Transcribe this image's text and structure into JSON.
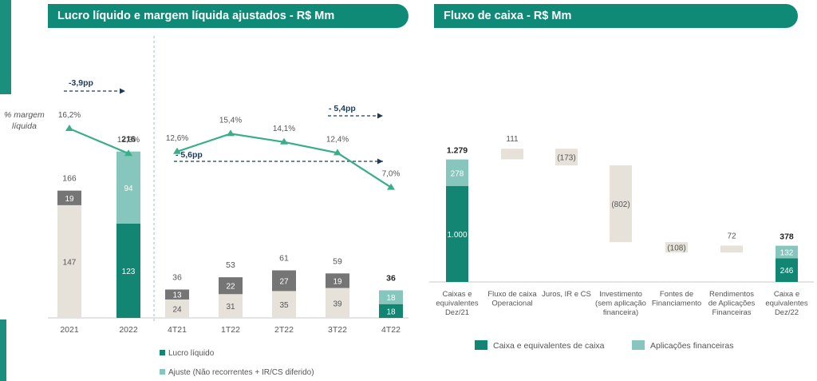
{
  "colors": {
    "header_bg": "#0e8a77",
    "dark_teal": "#138673",
    "light_teal": "#86c6bc",
    "gray": "#757575",
    "beige": "#e6e1d9",
    "line": "#3aae8a",
    "arrow": "#1f3b5c"
  },
  "left_panel": {
    "title": "Lucro líquido e margem líquida ajustados - R$ Mm",
    "margin_label_line1": "% margem",
    "margin_label_line2": "líquida",
    "legend": [
      {
        "label": "Lucro líquido",
        "color": "#138673"
      },
      {
        "label": "Ajuste (Não recorrentes + IR/CS diferido)",
        "color": "#86c6bc"
      }
    ]
  },
  "right_panel": {
    "title": "Fluxo de caixa - R$ Mm",
    "legend": [
      {
        "label": "Caixa e equivalentes de caixa",
        "color": "#138673"
      },
      {
        "label": "Aplicações financeiras",
        "color": "#86c6bc"
      }
    ]
  },
  "chart_data": [
    {
      "type": "bar",
      "subtype": "stacked",
      "title": "Lucro líquido e margem líquida ajustados - R$ Mm",
      "categories": [
        "2021",
        "2022",
        "4T21",
        "1T22",
        "2T22",
        "3T22",
        "4T22"
      ],
      "series": [
        {
          "name": "Lucro líquido",
          "values": [
            147,
            123,
            24,
            31,
            35,
            39,
            18
          ],
          "colors": [
            "#e6e1d9",
            "#138673",
            "#e6e1d9",
            "#e6e1d9",
            "#e6e1d9",
            "#e6e1d9",
            "#138673"
          ]
        },
        {
          "name": "Ajuste (Não recorrentes + IR/CS diferido)",
          "values": [
            19,
            94,
            13,
            22,
            27,
            19,
            18
          ],
          "colors": [
            "#757575",
            "#86c6bc",
            "#757575",
            "#757575",
            "#757575",
            "#757575",
            "#86c6bc"
          ]
        }
      ],
      "totals": [
        "166",
        "216",
        "36",
        "53",
        "61",
        "59",
        "36"
      ],
      "bold_totals": [
        false,
        true,
        false,
        false,
        false,
        false,
        true
      ],
      "margin_line": {
        "label": "% margem líquida",
        "groups": [
          {
            "categories": [
              "2021",
              "2022"
            ],
            "labels": [
              "16,2%",
              "12,3%"
            ],
            "values": [
              16.2,
              12.3
            ]
          },
          {
            "categories": [
              "4T21",
              "1T22",
              "2T22",
              "3T22",
              "4T22"
            ],
            "labels": [
              "12,6%",
              "15,4%",
              "14,1%",
              "12,4%",
              "7,0%"
            ],
            "values": [
              12.6,
              15.4,
              14.1,
              12.4,
              7.0
            ]
          }
        ]
      },
      "annotations": [
        "-3,9pp",
        "- 5,6pp",
        "- 5,4pp"
      ]
    },
    {
      "type": "bar",
      "subtype": "waterfall",
      "title": "Fluxo de caixa - R$ Mm",
      "categories": [
        "Caixas e equivalentes Dez/21",
        "Fluxo de caixa Operacional",
        "Juros, IR e CS",
        "Investimento (sem aplicação financeira)",
        "Fontes de Financiamento",
        "Rendimentos de Aplicações Financeiras",
        "Caixa e equivalentes Dez/22"
      ],
      "category_lines": [
        [
          "Caixas e",
          "equivalentes",
          "Dez/21"
        ],
        [
          "Fluxo de caixa",
          "Operacional"
        ],
        [
          "Juros, IR e CS"
        ],
        [
          "Investimento",
          "(sem aplicação",
          "financeira)"
        ],
        [
          "Fontes de",
          "Financiamento"
        ],
        [
          "Rendimentos",
          "de Aplicações",
          "Financeiras"
        ],
        [
          "Caixa e",
          "equivalentes",
          "Dez/22"
        ]
      ],
      "values": [
        1279,
        111,
        -173,
        -802,
        -108,
        72,
        378
      ],
      "value_labels": [
        "1.279",
        "111",
        "(173)",
        "(802)",
        "(108)",
        "72",
        "378"
      ],
      "totals_breakdown": {
        "Caixas e equivalentes Dez/21": {
          "Caixa e equivalentes de caixa": 1000,
          "Aplicações financeiras": 278,
          "labels": [
            "1.000",
            "278"
          ]
        },
        "Caixa e equivalentes Dez/22": {
          "Caixa e equivalentes de caixa": 246,
          "Aplicações financeiras": 132,
          "labels": [
            "246",
            "132"
          ]
        }
      }
    }
  ]
}
